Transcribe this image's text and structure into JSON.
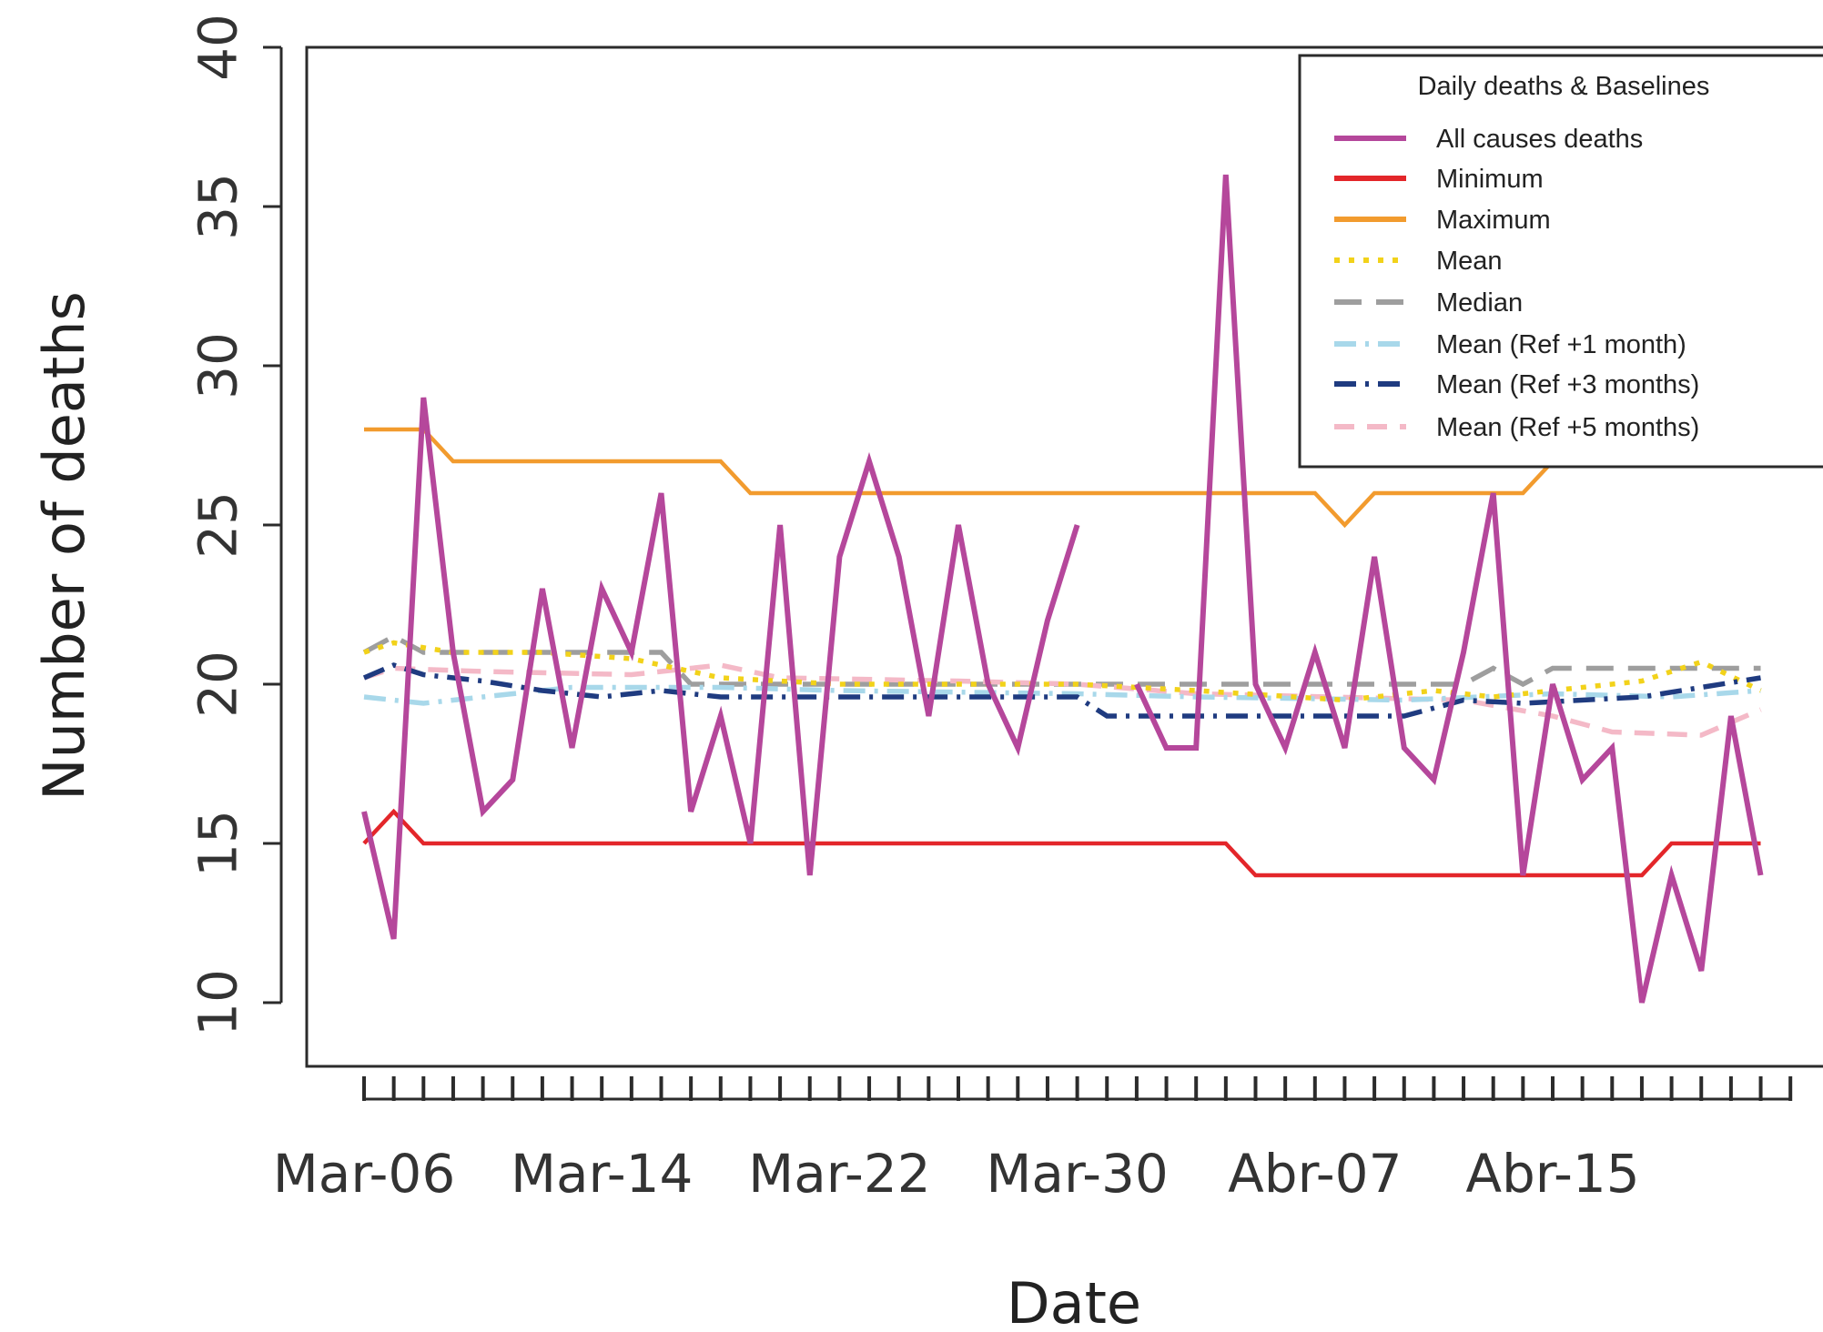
{
  "chart_data": {
    "type": "line",
    "title": "",
    "xlabel": "Date",
    "ylabel": "Number of deaths",
    "ylim": [
      8,
      40
    ],
    "y_ticks": [
      10,
      15,
      20,
      25,
      30,
      35,
      40
    ],
    "x_start_date": "2020-03-06",
    "x_end_date": "2020-04-23",
    "x_tick_labels": [
      {
        "date": "2020-03-06",
        "label": "Mar-06"
      },
      {
        "date": "2020-03-14",
        "label": "Mar-14"
      },
      {
        "date": "2020-03-22",
        "label": "Mar-22"
      },
      {
        "date": "2020-03-30",
        "label": "Mar-30"
      },
      {
        "date": "2020-04-07",
        "label": "Abr-07"
      },
      {
        "date": "2020-04-15",
        "label": "Abr-15"
      }
    ],
    "grid": false,
    "legend": {
      "title": "Daily deaths & Baselines",
      "placement": "top-right"
    },
    "series": [
      {
        "name": "All causes deaths",
        "color": "#b5479b",
        "style": "solid",
        "points": [
          [
            "2020-03-06",
            16
          ],
          [
            "2020-03-07",
            12
          ],
          [
            "2020-03-08",
            29
          ],
          [
            "2020-03-09",
            21
          ],
          [
            "2020-03-10",
            16
          ],
          [
            "2020-03-11",
            17
          ],
          [
            "2020-03-12",
            23
          ],
          [
            "2020-03-13",
            18
          ],
          [
            "2020-03-14",
            23
          ],
          [
            "2020-03-15",
            21
          ],
          [
            "2020-03-16",
            26
          ],
          [
            "2020-03-17",
            16
          ],
          [
            "2020-03-18",
            19
          ],
          [
            "2020-03-19",
            15
          ],
          [
            "2020-03-20",
            25
          ],
          [
            "2020-03-21",
            14
          ],
          [
            "2020-03-22",
            24
          ],
          [
            "2020-03-23",
            27
          ],
          [
            "2020-03-24",
            24
          ],
          [
            "2020-03-25",
            19
          ],
          [
            "2020-03-26",
            25
          ],
          [
            "2020-03-27",
            20
          ],
          [
            "2020-03-28",
            18
          ],
          [
            "2020-03-29",
            22
          ],
          [
            "2020-03-30",
            25
          ],
          null,
          [
            "2020-04-01",
            20
          ],
          [
            "2020-04-02",
            18
          ],
          [
            "2020-04-03",
            18
          ],
          [
            "2020-04-04",
            36
          ],
          [
            "2020-04-05",
            20
          ],
          [
            "2020-04-06",
            18
          ],
          [
            "2020-04-07",
            21
          ],
          [
            "2020-04-08",
            18
          ],
          [
            "2020-04-09",
            24
          ],
          [
            "2020-04-10",
            18
          ],
          [
            "2020-04-11",
            17
          ],
          [
            "2020-04-12",
            21
          ],
          [
            "2020-04-13",
            26
          ],
          [
            "2020-04-14",
            14
          ],
          [
            "2020-04-15",
            20
          ],
          [
            "2020-04-16",
            17
          ],
          [
            "2020-04-17",
            18
          ],
          [
            "2020-04-18",
            10
          ],
          [
            "2020-04-19",
            14
          ],
          [
            "2020-04-20",
            11
          ],
          [
            "2020-04-21",
            19
          ],
          [
            "2020-04-22",
            14
          ]
        ]
      },
      {
        "name": "Minimum",
        "color": "#e3262a",
        "style": "solid",
        "points": [
          [
            "2020-03-06",
            15
          ],
          [
            "2020-03-07",
            16
          ],
          [
            "2020-03-08",
            15
          ],
          [
            "2020-04-04",
            15
          ],
          [
            "2020-04-05",
            14
          ],
          [
            "2020-04-18",
            14
          ],
          [
            "2020-04-19",
            15
          ],
          [
            "2020-04-22",
            15
          ]
        ]
      },
      {
        "name": "Maximum",
        "color": "#f29b2e",
        "style": "solid",
        "points": [
          [
            "2020-03-06",
            28
          ],
          [
            "2020-03-08",
            28
          ],
          [
            "2020-03-09",
            27
          ],
          [
            "2020-03-18",
            27
          ],
          [
            "2020-03-19",
            26
          ],
          [
            "2020-04-07",
            26
          ],
          [
            "2020-04-08",
            25
          ],
          [
            "2020-04-09",
            26
          ],
          [
            "2020-04-14",
            26
          ],
          [
            "2020-04-15",
            27
          ]
        ]
      },
      {
        "name": "Mean",
        "color": "#f2d21a",
        "style": "dotted",
        "points": [
          [
            "2020-03-06",
            21
          ],
          [
            "2020-03-07",
            21.3
          ],
          [
            "2020-03-09",
            21
          ],
          [
            "2020-03-12",
            21
          ],
          [
            "2020-03-15",
            20.8
          ],
          [
            "2020-03-18",
            20.2
          ],
          [
            "2020-03-22",
            20
          ],
          [
            "2020-03-30",
            20
          ],
          [
            "2020-04-03",
            19.8
          ],
          [
            "2020-04-08",
            19.5
          ],
          [
            "2020-04-11",
            19.8
          ],
          [
            "2020-04-13",
            19.6
          ],
          [
            "2020-04-18",
            20.1
          ],
          [
            "2020-04-20",
            20.7
          ],
          [
            "2020-04-22",
            19.8
          ]
        ]
      },
      {
        "name": "Median",
        "color": "#9e9e9e",
        "style": "longdash",
        "points": [
          [
            "2020-03-06",
            21
          ],
          [
            "2020-03-07",
            21.5
          ],
          [
            "2020-03-08",
            21
          ],
          [
            "2020-03-16",
            21
          ],
          [
            "2020-03-17",
            20
          ],
          [
            "2020-04-11",
            20
          ],
          [
            "2020-04-12",
            20
          ],
          [
            "2020-04-13",
            20.5
          ],
          [
            "2020-04-14",
            20
          ],
          [
            "2020-04-15",
            20.5
          ],
          [
            "2020-04-22",
            20.5
          ]
        ]
      },
      {
        "name": "Mean (Ref +1 month)",
        "color": "#a8d8ea",
        "style": "dashdot",
        "points": [
          [
            "2020-03-06",
            19.6
          ],
          [
            "2020-03-08",
            19.4
          ],
          [
            "2020-03-10",
            19.6
          ],
          [
            "2020-03-13",
            19.9
          ],
          [
            "2020-03-18",
            19.9
          ],
          [
            "2020-03-22",
            19.8
          ],
          [
            "2020-03-30",
            19.7
          ],
          [
            "2020-04-03",
            19.6
          ],
          [
            "2020-04-10",
            19.5
          ],
          [
            "2020-04-15",
            19.7
          ],
          [
            "2020-04-19",
            19.6
          ],
          [
            "2020-04-22",
            19.8
          ]
        ]
      },
      {
        "name": "Mean (Ref +3 months)",
        "color": "#1f3b80",
        "style": "dashdot",
        "points": [
          [
            "2020-03-06",
            20.2
          ],
          [
            "2020-03-07",
            20.6
          ],
          [
            "2020-03-08",
            20.3
          ],
          [
            "2020-03-10",
            20.1
          ],
          [
            "2020-03-12",
            19.8
          ],
          [
            "2020-03-14",
            19.6
          ],
          [
            "2020-03-16",
            19.8
          ],
          [
            "2020-03-18",
            19.6
          ],
          [
            "2020-03-22",
            19.6
          ],
          [
            "2020-03-30",
            19.6
          ],
          [
            "2020-03-31",
            19
          ],
          [
            "2020-04-10",
            19
          ],
          [
            "2020-04-12",
            19.5
          ],
          [
            "2020-04-14",
            19.4
          ],
          [
            "2020-04-18",
            19.6
          ],
          [
            "2020-04-20",
            19.9
          ],
          [
            "2020-04-22",
            20.2
          ]
        ]
      },
      {
        "name": "Mean (Ref +5 months)",
        "color": "#f4b9c7",
        "style": "dashed",
        "points": [
          [
            "2020-03-06",
            20.2
          ],
          [
            "2020-03-07",
            20.5
          ],
          [
            "2020-03-10",
            20.4
          ],
          [
            "2020-03-15",
            20.3
          ],
          [
            "2020-03-18",
            20.6
          ],
          [
            "2020-03-20",
            20.2
          ],
          [
            "2020-03-26",
            20.1
          ],
          [
            "2020-03-30",
            20
          ],
          [
            "2020-04-03",
            19.7
          ],
          [
            "2020-04-12",
            19.5
          ],
          [
            "2020-04-15",
            19
          ],
          [
            "2020-04-17",
            18.5
          ],
          [
            "2020-04-20",
            18.4
          ],
          [
            "2020-04-22",
            19.2
          ]
        ]
      }
    ]
  }
}
